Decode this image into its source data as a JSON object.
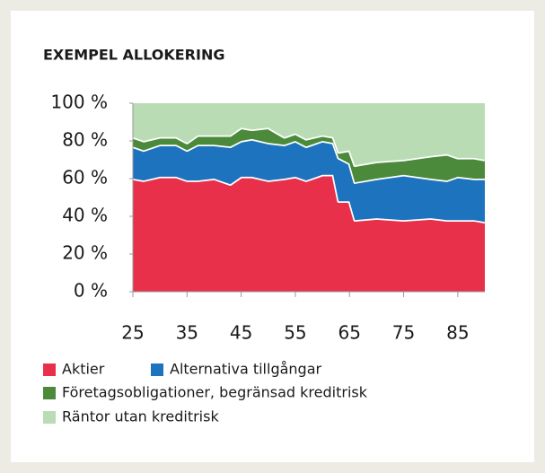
{
  "chart_data": {
    "type": "stacked_area",
    "title": "EXEMPEL ALLOKERING",
    "x": [
      25,
      27,
      30,
      33,
      35,
      37,
      40,
      43,
      45,
      47,
      50,
      53,
      55,
      57,
      60,
      62,
      63,
      65,
      66,
      70,
      75,
      80,
      83,
      85,
      88,
      90
    ],
    "series": [
      {
        "name": "Aktier",
        "color": "#e8304a",
        "values": [
          60,
          59,
          61,
          61,
          59,
          59,
          60,
          57,
          61,
          61,
          59,
          60,
          61,
          59,
          62,
          62,
          48,
          48,
          38,
          39,
          38,
          39,
          38,
          38,
          38,
          37
        ]
      },
      {
        "name": "Alternativa tillgångar",
        "color": "#1e73be",
        "values": [
          17,
          16,
          17,
          17,
          16,
          19,
          18,
          20,
          19,
          20,
          20,
          18,
          19,
          18,
          18,
          17,
          23,
          20,
          20,
          21,
          24,
          21,
          21,
          23,
          22,
          23
        ]
      },
      {
        "name": "Företagsobligationer, begränsad kreditrisk",
        "color": "#4a8a3a",
        "values": [
          5,
          5,
          4,
          4,
          4,
          5,
          5,
          6,
          7,
          5,
          8,
          4,
          4,
          4,
          3,
          3,
          3,
          7,
          9,
          9,
          8,
          12,
          14,
          10,
          11,
          10
        ]
      },
      {
        "name": "Räntor utan kreditrisk",
        "color": "#b9dcb4",
        "values": [
          18,
          20,
          18,
          18,
          21,
          17,
          17,
          17,
          13,
          14,
          13,
          18,
          16,
          19,
          17,
          18,
          26,
          25,
          33,
          31,
          30,
          28,
          27,
          29,
          29,
          30
        ]
      }
    ],
    "xlim": [
      25,
      90
    ],
    "xticks": [
      25,
      35,
      45,
      55,
      65,
      75,
      85
    ],
    "ylim": [
      0,
      100
    ],
    "yticks": [
      {
        "value": 0,
        "label": "0 %"
      },
      {
        "value": 20,
        "label": "20 %"
      },
      {
        "value": 40,
        "label": "40 %"
      },
      {
        "value": 60,
        "label": "60 %"
      },
      {
        "value": 80,
        "label": "80 %"
      },
      {
        "value": 100,
        "label": "100 %"
      }
    ]
  }
}
